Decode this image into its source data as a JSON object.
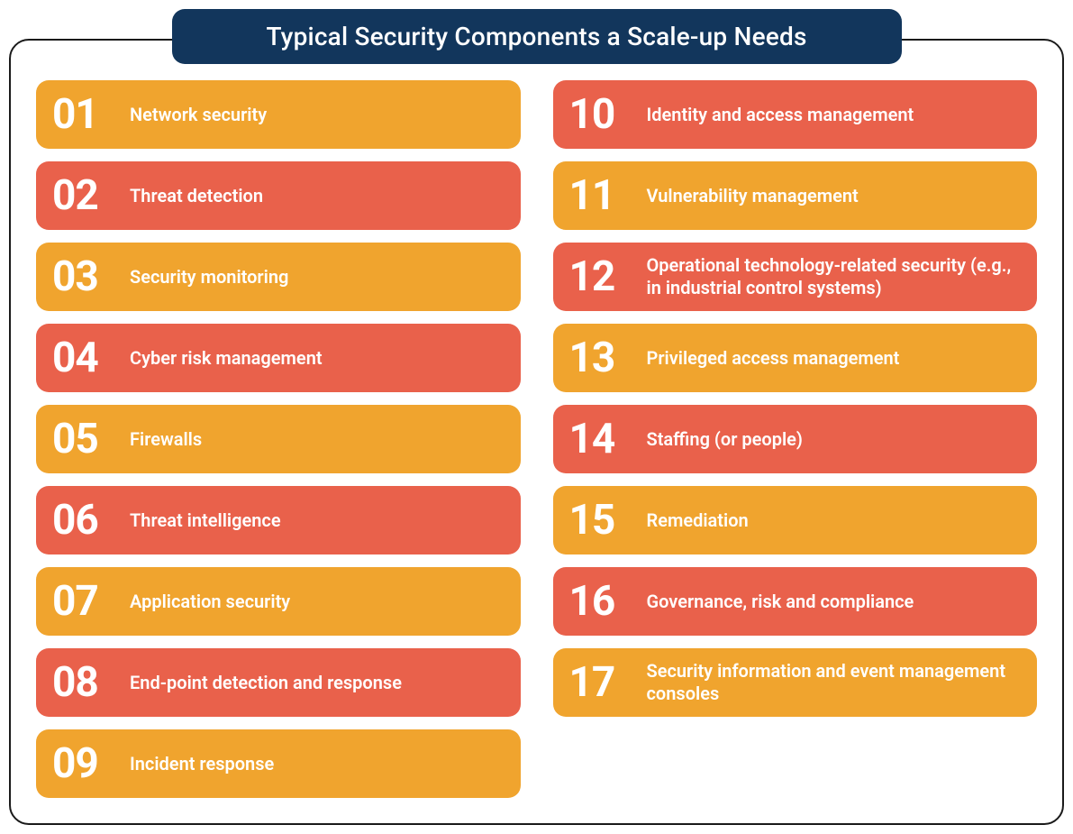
{
  "title": "Typical Security Components a Scale-up Needs",
  "colors": {
    "title_bg": "#12365c",
    "title_text": "#ffffff",
    "panel_border": "#1a1a1a",
    "item_text": "#ffffff",
    "orange": "#f0a42e",
    "red": "#e9614b"
  },
  "layout": {
    "left_count": 9,
    "right_count": 8
  },
  "items": [
    {
      "num": "01",
      "label": "Network security",
      "color": "orange"
    },
    {
      "num": "02",
      "label": "Threat detection",
      "color": "red"
    },
    {
      "num": "03",
      "label": "Security monitoring",
      "color": "orange"
    },
    {
      "num": "04",
      "label": "Cyber risk management",
      "color": "red"
    },
    {
      "num": "05",
      "label": "Firewalls",
      "color": "orange"
    },
    {
      "num": "06",
      "label": "Threat intelligence",
      "color": "red"
    },
    {
      "num": "07",
      "label": "Application security",
      "color": "orange"
    },
    {
      "num": "08",
      "label": "End-point detection and response",
      "color": "red"
    },
    {
      "num": "09",
      "label": "Incident response",
      "color": "orange"
    },
    {
      "num": "10",
      "label": "Identity and access management",
      "color": "red"
    },
    {
      "num": "11",
      "label": "Vulnerability management",
      "color": "orange"
    },
    {
      "num": "12",
      "label": "Operational technology-related security (e.g., in industrial control systems)",
      "color": "red"
    },
    {
      "num": "13",
      "label": "Privileged access management",
      "color": "orange"
    },
    {
      "num": "14",
      "label": "Staffing (or people)",
      "color": "red"
    },
    {
      "num": "15",
      "label": "Remediation",
      "color": "orange"
    },
    {
      "num": "16",
      "label": "Governance, risk and compliance",
      "color": "red"
    },
    {
      "num": "17",
      "label": "Security information and event management consoles",
      "color": "orange"
    }
  ]
}
